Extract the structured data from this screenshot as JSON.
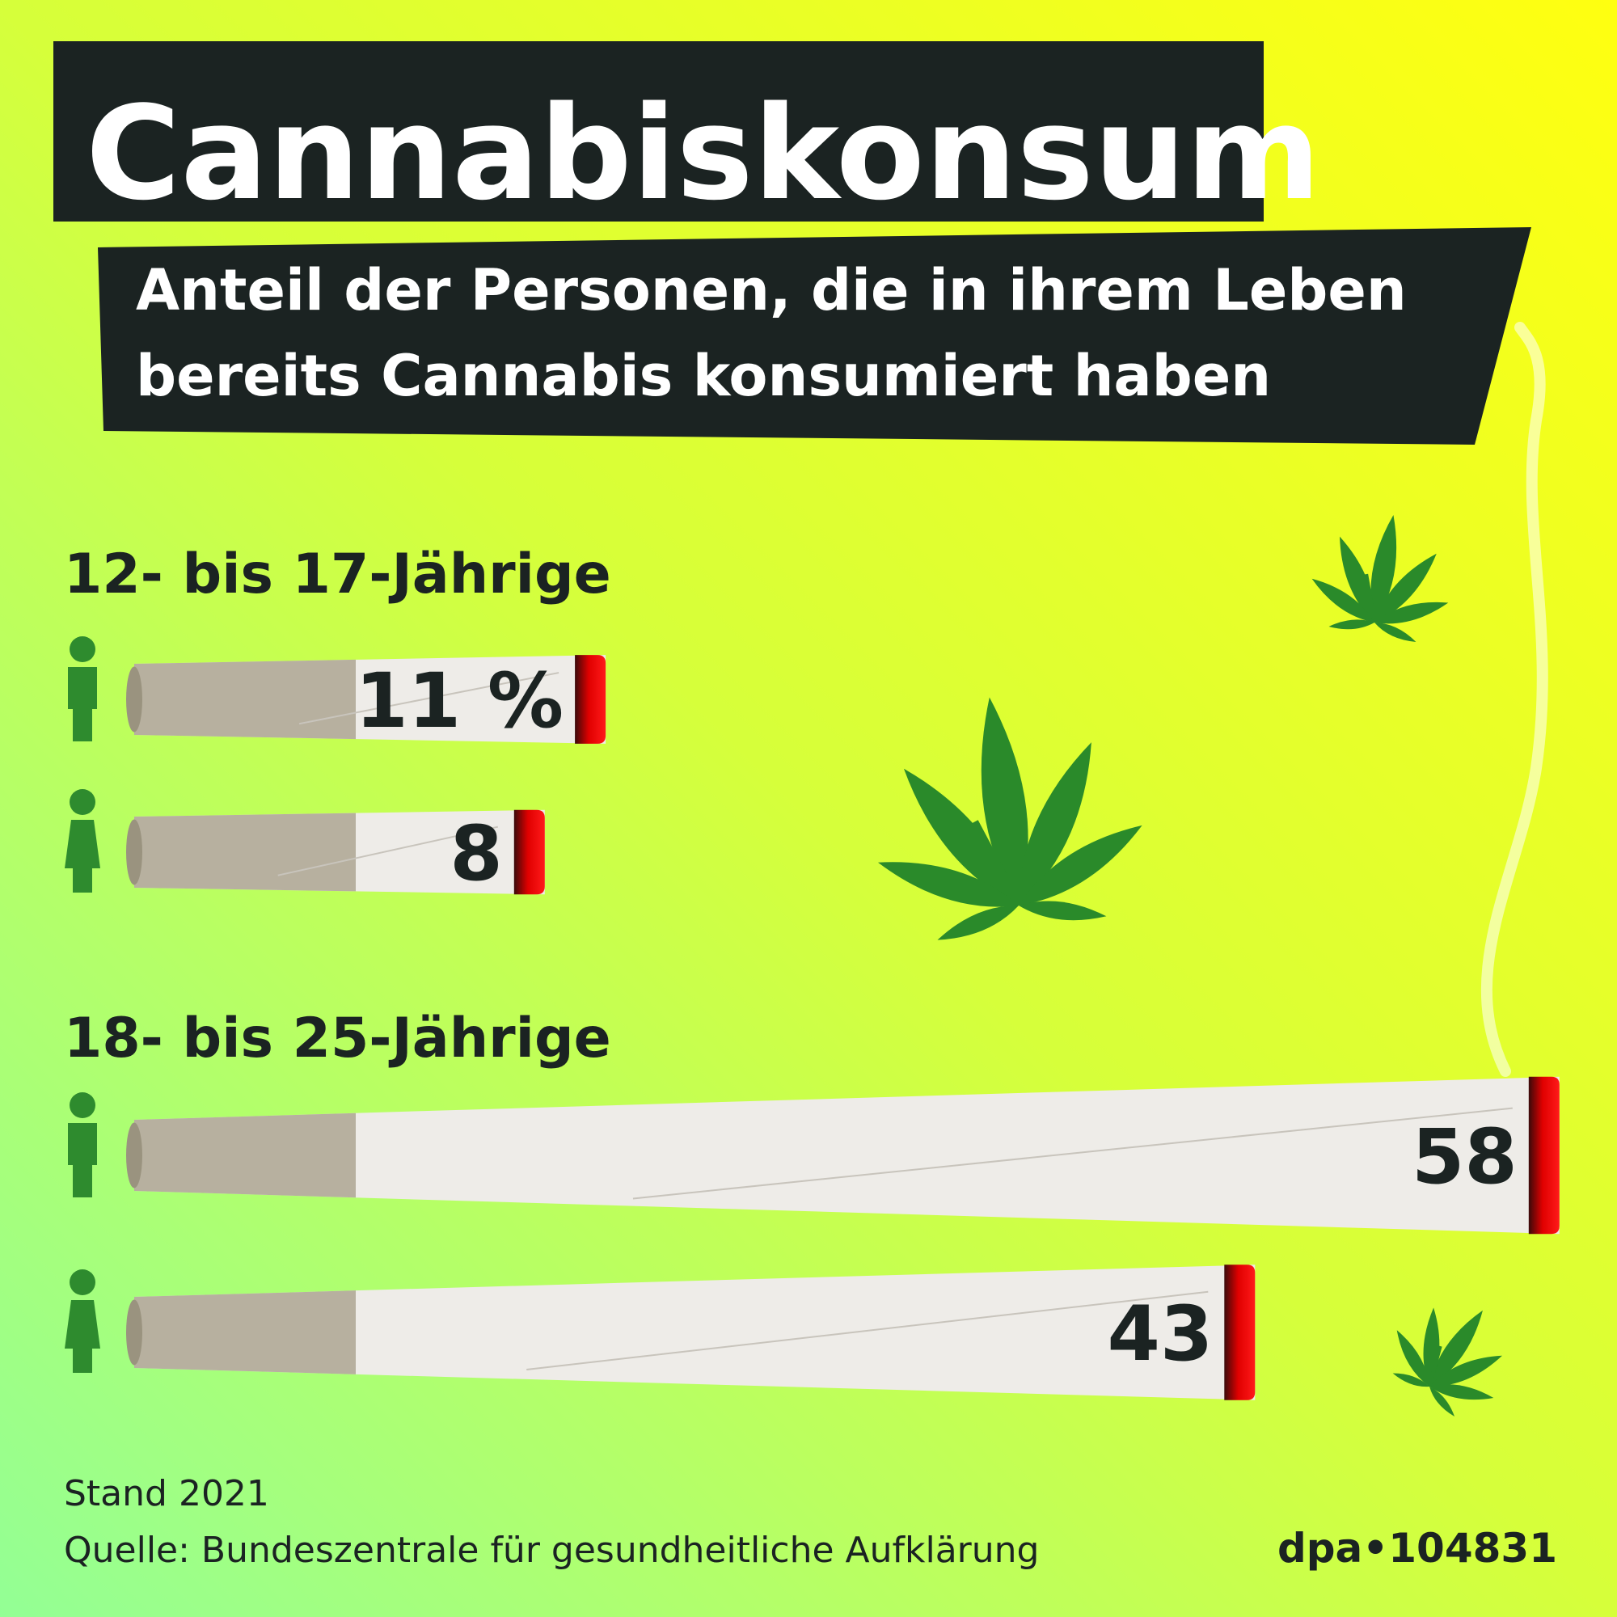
{
  "chart_data": {
    "type": "bar",
    "title": "Cannabiskonsum",
    "subtitle": [
      "Anteil der Personen, die in ihrem Leben",
      "bereits Cannabis konsumiert haben"
    ],
    "categories": [
      "12- bis 17-Jährige",
      "18- bis 25-Jährige"
    ],
    "series": [
      {
        "color": "#eeece8",
        "values": [
          11,
          58
        ],
        "value_labels": [
          "11 %",
          "58"
        ]
      },
      {
        "color": "#eeece8",
        "values": [
          8,
          43
        ],
        "value_labels": [
          "8",
          "43"
        ]
      }
    ],
    "note": "Stand 2021",
    "source": "Quelle: Bundeszentrale für gesundheitliche Aufklärung",
    "credit": "dpa•104831"
  }
}
